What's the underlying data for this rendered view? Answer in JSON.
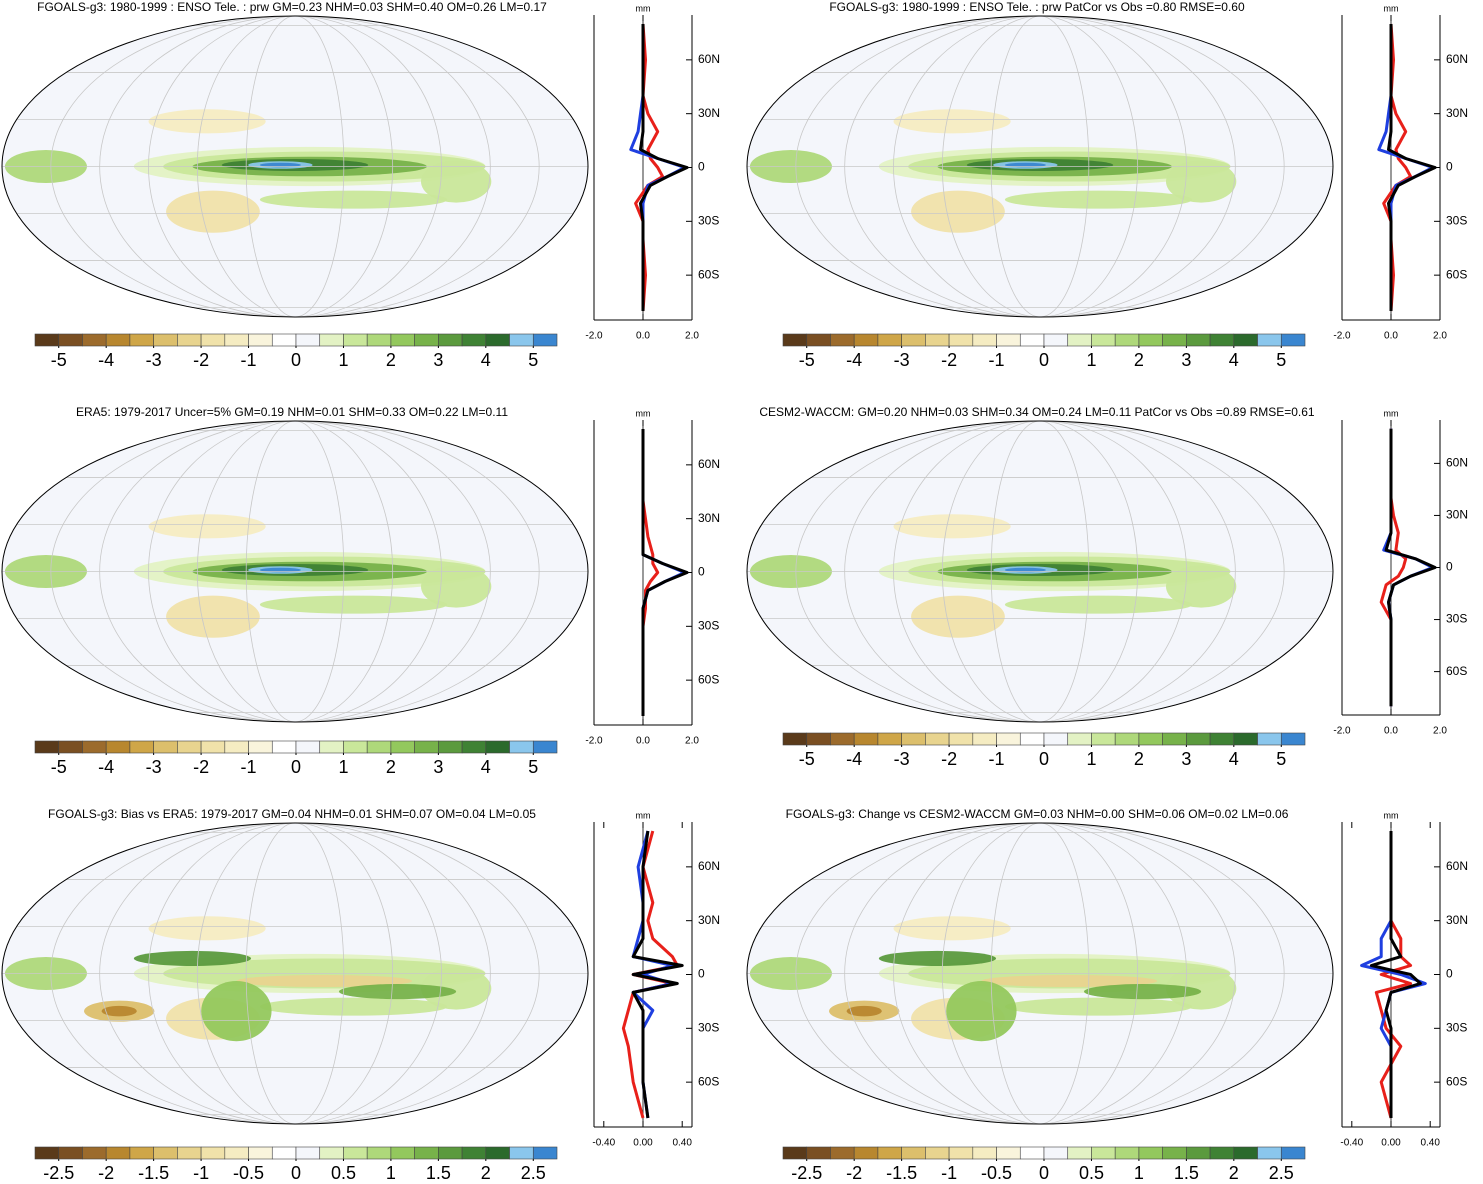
{
  "chart_data": [
    {
      "type": "map",
      "title": "FGOALS-g3: 1980-1999 : ENSO Tele. : prw GM=0.23 NHM=0.03 SHM=0.40 OM=0.26 LM=0.17",
      "colorbar": {
        "colors": [
          "#5a3a1a",
          "#7a4f22",
          "#9c6b2c",
          "#b8872f",
          "#cfa648",
          "#dcbf6c",
          "#e8d48f",
          "#f0e2aa",
          "#f5ecc2",
          "#f9f4dc",
          "#ffffff",
          "#f4f6fb",
          "#e3f2c4",
          "#c9e79a",
          "#aed87a",
          "#93c85d",
          "#77b24a",
          "#5b9a3e",
          "#3f8234",
          "#2b6a2c",
          "#8ac6ec",
          "#3a86d0"
        ],
        "ticks": [
          -5,
          -4,
          -3,
          -2,
          -1,
          0,
          1,
          2,
          3,
          4,
          5
        ]
      },
      "profile": {
        "type": "line",
        "unit": "mm",
        "xlim": [
          -2,
          2
        ],
        "xticks": [
          {
            "value": -2,
            "label": "-2.0"
          },
          {
            "value": 0,
            "label": "0.0"
          },
          {
            "value": 2,
            "label": "2.0"
          }
        ],
        "ylim": [
          -85,
          85
        ],
        "yticks": [
          {
            "value": 60,
            "label": "60N"
          },
          {
            "value": 30,
            "label": "30N"
          },
          0,
          {
            "value": -30,
            "label": "30S"
          },
          {
            "value": -60,
            "label": "60S"
          }
        ],
        "lat": [
          -80,
          -60,
          -40,
          -30,
          -20,
          -10,
          -5,
          0,
          5,
          10,
          20,
          30,
          40,
          60,
          80
        ],
        "series": [
          {
            "color": "#e8201a",
            "values": [
              0,
              0.1,
              0,
              0,
              -0.3,
              0.2,
              0.8,
              0.6,
              0.3,
              0.2,
              0.6,
              0.2,
              0,
              0.1,
              0
            ]
          },
          {
            "color": "#1f3fe0",
            "values": [
              0,
              0,
              0,
              0,
              0,
              0.2,
              1,
              1.7,
              0.6,
              -0.5,
              -0.2,
              -0.1,
              0,
              0,
              0
            ]
          },
          {
            "color": "#000000",
            "values": [
              0,
              0,
              0,
              0,
              -0.1,
              0.3,
              1,
              1.8,
              0.6,
              -0.1,
              0,
              0,
              0,
              0,
              0
            ]
          }
        ]
      }
    },
    {
      "type": "map",
      "title": "FGOALS-g3: 1980-1999 : ENSO Tele. : prw PatCor vs Obs =0.80 RMSE=0.60",
      "colorbar": {
        "colors": [
          "#5a3a1a",
          "#7a4f22",
          "#9c6b2c",
          "#b8872f",
          "#cfa648",
          "#dcbf6c",
          "#e8d48f",
          "#f0e2aa",
          "#f5ecc2",
          "#f9f4dc",
          "#ffffff",
          "#f4f6fb",
          "#e3f2c4",
          "#c9e79a",
          "#aed87a",
          "#93c85d",
          "#77b24a",
          "#5b9a3e",
          "#3f8234",
          "#2b6a2c",
          "#8ac6ec",
          "#3a86d0"
        ],
        "ticks": [
          -5,
          -4,
          -3,
          -2,
          -1,
          0,
          1,
          2,
          3,
          4,
          5
        ]
      },
      "profile": {
        "type": "line",
        "unit": "mm",
        "xlim": [
          -2,
          2
        ],
        "xticks": [
          {
            "value": -2,
            "label": "-2.0"
          },
          {
            "value": 0,
            "label": "0.0"
          },
          {
            "value": 2,
            "label": "2.0"
          }
        ],
        "ylim": [
          -85,
          85
        ],
        "yticks": [
          {
            "value": 60,
            "label": "60N"
          },
          {
            "value": 30,
            "label": "30N"
          },
          0,
          {
            "value": -30,
            "label": "30S"
          },
          {
            "value": -60,
            "label": "60S"
          }
        ],
        "lat": [
          -80,
          -60,
          -40,
          -30,
          -20,
          -10,
          -5,
          0,
          5,
          10,
          20,
          30,
          40,
          60,
          80
        ],
        "series": [
          {
            "color": "#e8201a",
            "values": [
              0,
              0.1,
              0,
              0,
              -0.3,
              0.2,
              0.8,
              0.6,
              0.3,
              0.2,
              0.6,
              0.2,
              0,
              0.1,
              0
            ]
          },
          {
            "color": "#1f3fe0",
            "values": [
              0,
              0,
              0,
              0,
              0,
              0.2,
              1,
              1.7,
              0.6,
              -0.5,
              -0.2,
              -0.1,
              0,
              0,
              0
            ]
          },
          {
            "color": "#000000",
            "values": [
              0,
              0,
              0,
              0,
              -0.1,
              0.3,
              1,
              1.8,
              0.6,
              -0.1,
              0,
              0,
              0,
              0,
              0
            ]
          }
        ]
      }
    },
    {
      "type": "map",
      "title": "ERA5: 1979-2017 Uncer=5% GM=0.19 NHM=0.01 SHM=0.33 OM=0.22 LM=0.11",
      "colorbar": {
        "colors": [
          "#5a3a1a",
          "#7a4f22",
          "#9c6b2c",
          "#b8872f",
          "#cfa648",
          "#dcbf6c",
          "#e8d48f",
          "#f0e2aa",
          "#f5ecc2",
          "#f9f4dc",
          "#ffffff",
          "#f4f6fb",
          "#e3f2c4",
          "#c9e79a",
          "#aed87a",
          "#93c85d",
          "#77b24a",
          "#5b9a3e",
          "#3f8234",
          "#2b6a2c",
          "#8ac6ec",
          "#3a86d0"
        ],
        "ticks": [
          -5,
          -4,
          -3,
          -2,
          -1,
          0,
          1,
          2,
          3,
          4,
          5
        ]
      },
      "profile": {
        "type": "line",
        "unit": "mm",
        "xlim": [
          -2,
          2
        ],
        "xticks": [
          {
            "value": -2,
            "label": "-2.0"
          },
          {
            "value": 0,
            "label": "0.0"
          },
          {
            "value": 2,
            "label": "2.0"
          }
        ],
        "ylim": [
          -85,
          85
        ],
        "yticks": [
          {
            "value": 60,
            "label": "60N"
          },
          {
            "value": 30,
            "label": "30N"
          },
          0,
          {
            "value": -30,
            "label": "30S"
          },
          {
            "value": -60,
            "label": "60S"
          }
        ],
        "lat": [
          -80,
          -60,
          -40,
          -30,
          -20,
          -10,
          -5,
          0,
          5,
          10,
          20,
          30,
          40,
          60,
          80
        ],
        "series": [
          {
            "color": "#e8201a",
            "values": [
              0,
              0,
              0,
              0,
              0.1,
              0.1,
              0.3,
              0.6,
              0.4,
              0.4,
              0.2,
              0.1,
              0,
              0,
              0
            ]
          },
          {
            "color": "#1f3fe0",
            "values": [
              0,
              0,
              0,
              0,
              0,
              0.2,
              0.9,
              1.7,
              0.8,
              0,
              0,
              0,
              0,
              0,
              0
            ]
          },
          {
            "color": "#000000",
            "values": [
              0,
              0,
              0,
              0,
              0,
              0.2,
              0.9,
              1.8,
              0.8,
              0,
              0,
              0,
              0,
              0,
              0
            ]
          }
        ]
      }
    },
    {
      "type": "map",
      "title": "CESM2-WACCM: GM=0.20 NHM=0.03 SHM=0.34 OM=0.24 LM=0.11 PatCor vs Obs =0.89 RMSE=0.61",
      "colorbar": {
        "colors": [
          "#5a3a1a",
          "#7a4f22",
          "#9c6b2c",
          "#b8872f",
          "#cfa648",
          "#dcbf6c",
          "#e8d48f",
          "#f0e2aa",
          "#f5ecc2",
          "#f9f4dc",
          "#ffffff",
          "#f4f6fb",
          "#e3f2c4",
          "#c9e79a",
          "#aed87a",
          "#93c85d",
          "#77b24a",
          "#5b9a3e",
          "#3f8234",
          "#2b6a2c",
          "#8ac6ec",
          "#3a86d0"
        ],
        "ticks": [
          -5,
          -4,
          -3,
          -2,
          -1,
          0,
          1,
          2,
          3,
          4,
          5
        ]
      },
      "profile": {
        "type": "line",
        "unit": "mm",
        "xlim": [
          -2,
          2
        ],
        "xticks": [
          {
            "value": -2,
            "label": "-2.0"
          },
          {
            "value": 0,
            "label": "0.0"
          },
          {
            "value": 2,
            "label": "2.0"
          }
        ],
        "ylim": [
          -85,
          85
        ],
        "yticks": [
          {
            "value": 60,
            "label": "60N"
          },
          {
            "value": 30,
            "label": "30N"
          },
          0,
          {
            "value": -30,
            "label": "30S"
          },
          {
            "value": -60,
            "label": "60S"
          }
        ],
        "lat": [
          -80,
          -60,
          -40,
          -30,
          -20,
          -10,
          -5,
          0,
          5,
          10,
          20,
          30,
          40,
          60,
          80
        ],
        "series": [
          {
            "color": "#e8201a",
            "values": [
              0,
              0,
              0,
              0,
              -0.4,
              -0.2,
              0.3,
              0.5,
              0.6,
              0.2,
              0.3,
              0.1,
              0,
              0,
              0
            ]
          },
          {
            "color": "#1f3fe0",
            "values": [
              0,
              0,
              0,
              0,
              -0.1,
              0.1,
              0.8,
              1.7,
              1,
              -0.3,
              0,
              0,
              0,
              0,
              0
            ]
          },
          {
            "color": "#000000",
            "values": [
              0,
              0,
              0,
              0,
              -0.1,
              0.1,
              0.8,
              1.8,
              1,
              -0.2,
              0,
              0,
              0,
              0,
              0
            ]
          }
        ]
      }
    },
    {
      "type": "map",
      "title": "FGOALS-g3: Bias vs ERA5: 1979-2017 GM=0.04 NHM=0.01 SHM=0.07 OM=0.04 LM=0.05",
      "colorbar": {
        "colors": [
          "#5a3a1a",
          "#7a4f22",
          "#9c6b2c",
          "#b8872f",
          "#cfa648",
          "#dcbf6c",
          "#e8d48f",
          "#f0e2aa",
          "#f5ecc2",
          "#f9f4dc",
          "#ffffff",
          "#f4f6fb",
          "#e3f2c4",
          "#c9e79a",
          "#aed87a",
          "#93c85d",
          "#77b24a",
          "#5b9a3e",
          "#3f8234",
          "#2b6a2c",
          "#8ac6ec",
          "#3a86d0"
        ],
        "ticks": [
          -2.5,
          -2,
          -1.5,
          -1,
          -0.5,
          0,
          0.5,
          1,
          1.5,
          2,
          2.5
        ]
      },
      "profile": {
        "type": "line",
        "unit": "mm",
        "xlim": [
          -0.5,
          0.5
        ],
        "xticks": [
          {
            "value": -0.4,
            "label": "-0.40"
          },
          {
            "value": 0,
            "label": "0.00"
          },
          {
            "value": 0.4,
            "label": "0.40"
          }
        ],
        "ylim": [
          -85,
          85
        ],
        "yticks": [
          {
            "value": 60,
            "label": "60N"
          },
          {
            "value": 30,
            "label": "30N"
          },
          0,
          {
            "value": -30,
            "label": "30S"
          },
          {
            "value": -60,
            "label": "60S"
          }
        ],
        "lat": [
          -80,
          -60,
          -40,
          -30,
          -20,
          -10,
          -5,
          0,
          5,
          10,
          20,
          30,
          40,
          60,
          80
        ],
        "series": [
          {
            "color": "#e8201a",
            "values": [
              0,
              -0.1,
              -0.15,
              -0.2,
              -0.15,
              -0.1,
              0.3,
              -0.1,
              0.35,
              0.3,
              0.1,
              0.05,
              0.1,
              0,
              0.1
            ]
          },
          {
            "color": "#1f3fe0",
            "values": [
              0.05,
              0,
              0,
              0,
              0.1,
              -0.1,
              0.3,
              0,
              0.3,
              -0.1,
              -0.05,
              0,
              0,
              -0.05,
              0.05
            ]
          },
          {
            "color": "#000000",
            "values": [
              0.05,
              0,
              0,
              0,
              0,
              -0.1,
              0.35,
              -0.1,
              0.4,
              -0.1,
              0,
              0,
              0,
              0,
              0.05
            ]
          }
        ]
      }
    },
    {
      "type": "map",
      "title": "FGOALS-g3: Change vs CESM2-WACCM GM=0.03 NHM=0.00 SHM=0.06 OM=0.02 LM=0.06",
      "colorbar": {
        "colors": [
          "#5a3a1a",
          "#7a4f22",
          "#9c6b2c",
          "#b8872f",
          "#cfa648",
          "#dcbf6c",
          "#e8d48f",
          "#f0e2aa",
          "#f5ecc2",
          "#f9f4dc",
          "#ffffff",
          "#f4f6fb",
          "#e3f2c4",
          "#c9e79a",
          "#aed87a",
          "#93c85d",
          "#77b24a",
          "#5b9a3e",
          "#3f8234",
          "#2b6a2c",
          "#8ac6ec",
          "#3a86d0"
        ],
        "ticks": [
          -2.5,
          -2,
          -1.5,
          -1,
          -0.5,
          0,
          0.5,
          1,
          1.5,
          2,
          2.5
        ]
      },
      "profile": {
        "type": "line",
        "unit": "mm",
        "xlim": [
          -0.5,
          0.5
        ],
        "xticks": [
          {
            "value": -0.4,
            "label": "-0.40"
          },
          {
            "value": 0,
            "label": "0.00"
          },
          {
            "value": 0.4,
            "label": "0.40"
          }
        ],
        "ylim": [
          -85,
          85
        ],
        "yticks": [
          {
            "value": 60,
            "label": "60N"
          },
          {
            "value": 30,
            "label": "30N"
          },
          0,
          {
            "value": -30,
            "label": "30S"
          },
          {
            "value": -60,
            "label": "60S"
          }
        ],
        "lat": [
          -80,
          -60,
          -40,
          -30,
          -20,
          -10,
          -5,
          0,
          5,
          10,
          20,
          30,
          40,
          60,
          80
        ],
        "series": [
          {
            "color": "#e8201a",
            "values": [
              0,
              -0.1,
              0.1,
              -0.05,
              -0.1,
              -0.15,
              0.2,
              -0.1,
              0.2,
              0.1,
              0.1,
              0,
              0,
              0,
              0
            ]
          },
          {
            "color": "#1f3fe0",
            "values": [
              0,
              0,
              0,
              -0.1,
              -0.05,
              0,
              0.35,
              0.1,
              -0.3,
              -0.1,
              -0.1,
              0,
              0,
              0,
              0
            ]
          },
          {
            "color": "#000000",
            "values": [
              0,
              0,
              0,
              0,
              -0.05,
              0,
              0.3,
              0.2,
              -0.2,
              0.1,
              0,
              0,
              0,
              0,
              0
            ]
          }
        ]
      }
    }
  ]
}
